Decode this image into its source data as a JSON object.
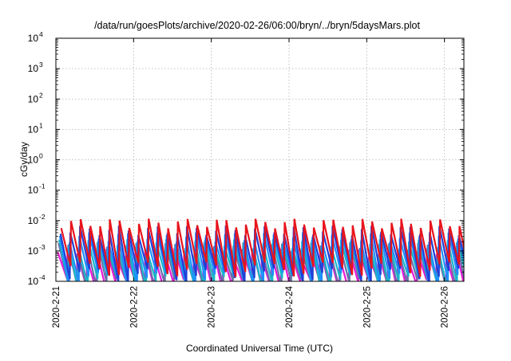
{
  "chart_data": {
    "type": "line",
    "title": "/data/run/goesPlots/archive/2020-02-26/06:00/bryn/../bryn/5daysMars.plot",
    "xlabel": "Coordinated Universal Time (UTC)",
    "ylabel": "cGy/day",
    "yscale": "log",
    "ylim": [
      0.0001,
      10000
    ],
    "xlim": [
      "2020-02-21T00:00",
      "2020-02-26T06:00"
    ],
    "grid": true,
    "legend": "none",
    "y_ticks": [
      {
        "base": "10",
        "exp": "-4",
        "value": 0.0001
      },
      {
        "base": "10",
        "exp": "-3",
        "value": 0.001
      },
      {
        "base": "10",
        "exp": "-2",
        "value": 0.01
      },
      {
        "base": "10",
        "exp": "-1",
        "value": 0.1
      },
      {
        "base": "10",
        "exp": "0",
        "value": 1
      },
      {
        "base": "10",
        "exp": "1",
        "value": 10
      },
      {
        "base": "10",
        "exp": "2",
        "value": 100
      },
      {
        "base": "10",
        "exp": "3",
        "value": 1000
      },
      {
        "base": "10",
        "exp": "4",
        "value": 10000
      }
    ],
    "x_ticks": [
      {
        "label": "2020-2-21",
        "date": "2020-02-21T00:00"
      },
      {
        "label": "2020-2-22",
        "date": "2020-02-22T00:00"
      },
      {
        "label": "2020-2-23",
        "date": "2020-02-23T00:00"
      },
      {
        "label": "2020-2-24",
        "date": "2020-02-24T00:00"
      },
      {
        "label": "2020-2-25",
        "date": "2020-02-25T00:00"
      },
      {
        "label": "2020-2-26",
        "date": "2020-02-26T00:00"
      }
    ],
    "series": [
      {
        "color": "#e8141c",
        "peak_days": [
          "2020-02-21T00:00",
          "2020-02-21T03:00",
          "2020-02-21T06:00",
          "2020-02-21T09:00",
          "2020-02-21T12:00",
          "2020-02-21T15:00",
          "2020-02-21T18:00",
          "2020-02-21T21:00",
          "2020-02-22T00:00",
          "2020-02-22T03:00",
          "2020-02-22T06:00",
          "2020-02-22T09:00",
          "2020-02-22T12:00",
          "2020-02-22T15:00",
          "2020-02-22T18:00",
          "2020-02-22T21:00",
          "2020-02-23T00:00",
          "2020-02-23T03:00",
          "2020-02-23T06:00",
          "2020-02-23T09:00",
          "2020-02-23T12:00",
          "2020-02-23T15:00",
          "2020-02-23T18:00",
          "2020-02-23T21:00",
          "2020-02-24T00:00",
          "2020-02-24T03:00",
          "2020-02-24T06:00",
          "2020-02-24T09:00",
          "2020-02-24T12:00",
          "2020-02-24T15:00",
          "2020-02-24T18:00",
          "2020-02-24T21:00",
          "2020-02-25T00:00",
          "2020-02-25T03:00",
          "2020-02-25T06:00",
          "2020-02-25T09:00",
          "2020-02-25T12:00",
          "2020-02-25T15:00",
          "2020-02-25T18:00",
          "2020-02-25T21:00",
          "2020-02-26T00:00",
          "2020-02-26T03:00"
        ],
        "peak": 0.0085,
        "trough": 0.00035
      },
      {
        "color": "#1f3fd6",
        "peak": 0.005,
        "trough": 0.00022
      },
      {
        "color": "#1e90ff",
        "peak": 0.003,
        "trough": 0.00016
      },
      {
        "color": "#17b8c9",
        "peak": 0.0018,
        "trough": 0.00013
      },
      {
        "color": "#6a6fa8",
        "peak": 0.0014,
        "trough": 0.0001
      },
      {
        "color": "#e619d6",
        "peak": 0.0009,
        "trough": 0.0001
      }
    ]
  }
}
